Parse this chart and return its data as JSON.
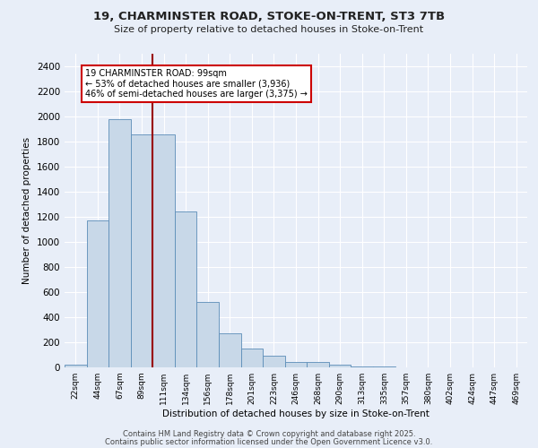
{
  "title_line1": "19, CHARMINSTER ROAD, STOKE-ON-TRENT, ST3 7TB",
  "title_line2": "Size of property relative to detached houses in Stoke-on-Trent",
  "xlabel": "Distribution of detached houses by size in Stoke-on-Trent",
  "ylabel": "Number of detached properties",
  "categories": [
    "22sqm",
    "44sqm",
    "67sqm",
    "89sqm",
    "111sqm",
    "134sqm",
    "156sqm",
    "178sqm",
    "201sqm",
    "223sqm",
    "246sqm",
    "268sqm",
    "290sqm",
    "313sqm",
    "335sqm",
    "357sqm",
    "380sqm",
    "402sqm",
    "424sqm",
    "447sqm",
    "469sqm"
  ],
  "values": [
    25,
    1170,
    1980,
    1860,
    1860,
    1240,
    520,
    275,
    150,
    90,
    40,
    40,
    20,
    10,
    5,
    3,
    2,
    2,
    2,
    2,
    2
  ],
  "bar_color": "#c8d8e8",
  "bar_edge_color": "#5b8db8",
  "vline_color": "#990000",
  "vline_x_idx": 3.5,
  "annotation_text": "19 CHARMINSTER ROAD: 99sqm\n← 53% of detached houses are smaller (3,936)\n46% of semi-detached houses are larger (3,375) →",
  "annotation_box_color": "#ffffff",
  "annotation_box_edge": "#cc0000",
  "ylim": [
    0,
    2500
  ],
  "yticks": [
    0,
    200,
    400,
    600,
    800,
    1000,
    1200,
    1400,
    1600,
    1800,
    2000,
    2200,
    2400
  ],
  "background_color": "#e8eef8",
  "footer_line1": "Contains HM Land Registry data © Crown copyright and database right 2025.",
  "footer_line2": "Contains public sector information licensed under the Open Government Licence v3.0."
}
